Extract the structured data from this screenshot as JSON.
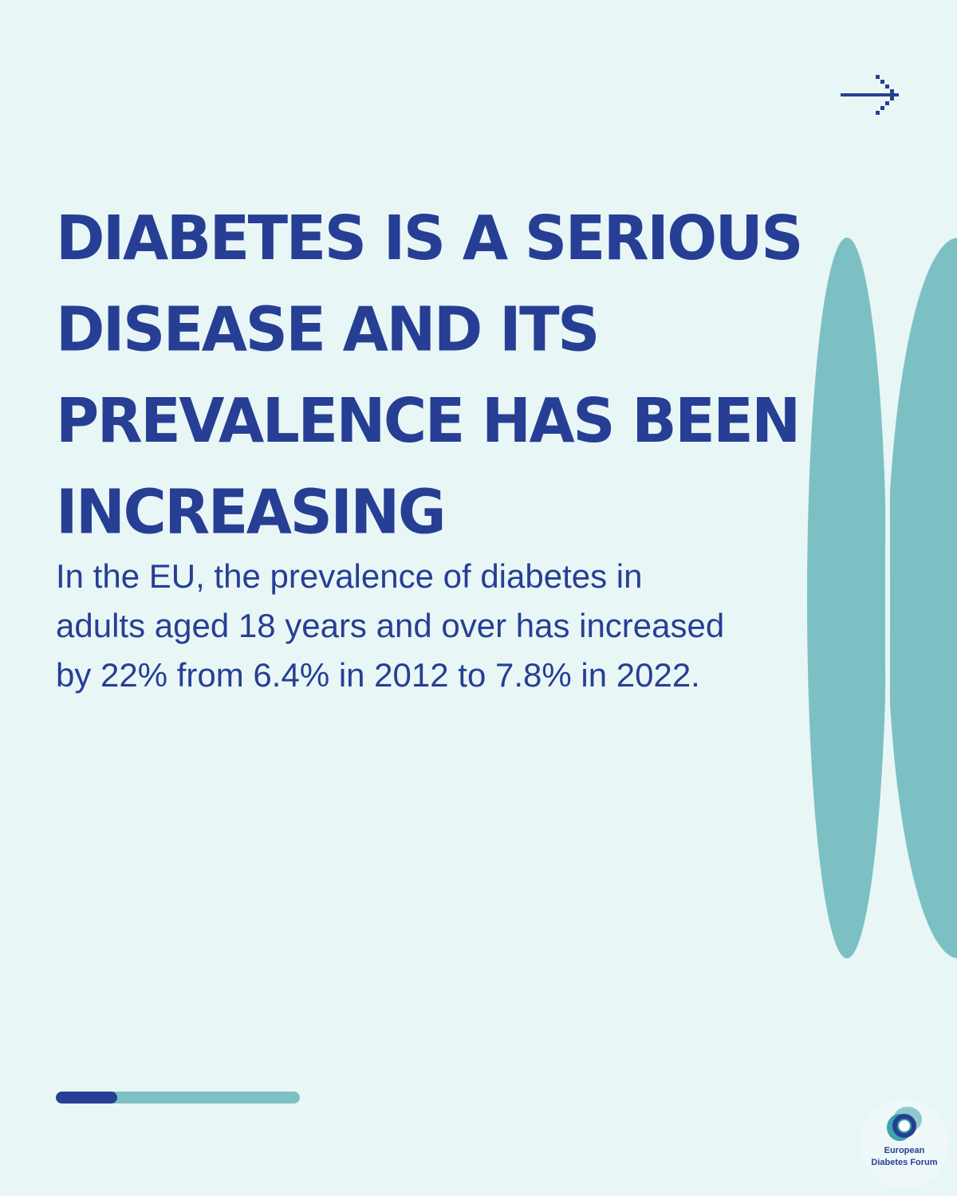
{
  "colors": {
    "background": "#e9f6f6",
    "primary": "#263f94",
    "accent": "#7dc0c4"
  },
  "nav": {
    "next_icon": "arrow-right-icon"
  },
  "headline": {
    "lines": [
      "DIABETES IS A SERIOUS",
      "DISEASE AND ITS",
      "PREVALENCE HAS BEEN",
      "INCREASING"
    ]
  },
  "body": {
    "lines": [
      "In the EU, the prevalence of diabetes in",
      "adults aged 18 years and over has increased",
      "by 22% from 6.4% in 2012 to 7.8% in 2022."
    ]
  },
  "progress": {
    "fraction": 0.25
  },
  "logo": {
    "line1": "European",
    "line2": "Diabetes Forum"
  }
}
